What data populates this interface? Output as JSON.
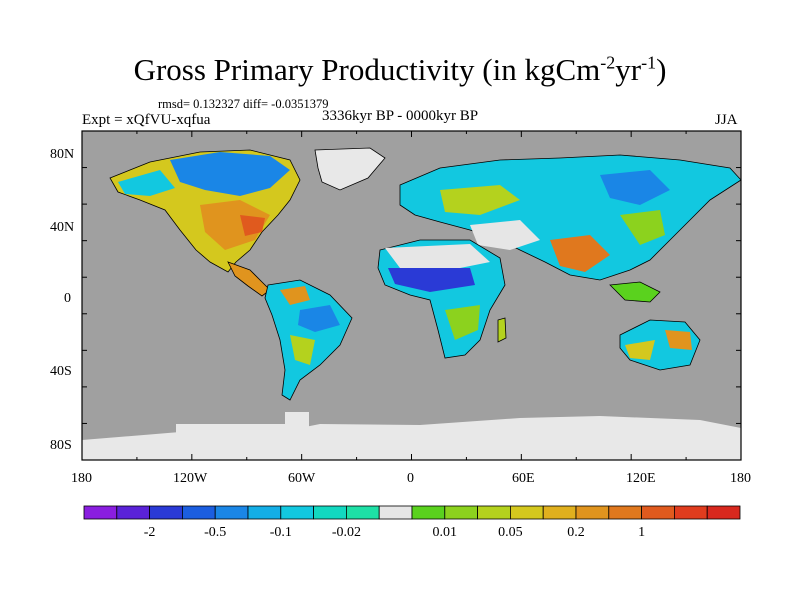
{
  "title": {
    "main": "Gross Primary Productivity (in kgCm",
    "sup1": "-2",
    "mid": "yr",
    "sup2": "-1",
    "end": ")"
  },
  "stats_line": "rmsd= 0.132327 diff= -0.0351379",
  "experiment": "Expt = xQfVU-xqfua",
  "period": "3336kyr BP - 0000kyr BP",
  "season": "JJA",
  "map": {
    "lat_labels": [
      "80N",
      "40N",
      "0",
      "40S",
      "80S"
    ],
    "lon_labels": [
      "180",
      "120W",
      "60W",
      "0",
      "60E",
      "120E",
      "180"
    ],
    "ocean_color": "#a0a0a0",
    "ice_color": "#e8e8e8"
  },
  "colorbar": {
    "colors": [
      "#8a1ee0",
      "#5a22d8",
      "#2a3ad6",
      "#1b5ee0",
      "#1a86e6",
      "#13aee6",
      "#12c8e0",
      "#12d8c0",
      "#1ee0a6",
      "#e6e6e6",
      "#5ad21e",
      "#8cd21e",
      "#b4d21e",
      "#d4c81e",
      "#e0b01e",
      "#e0941e",
      "#e0781e",
      "#e05a1e",
      "#e03c1e",
      "#d8281e"
    ],
    "labels": [
      "-2",
      "-0.5",
      "-0.1",
      "-0.02",
      "0.01",
      "0.05",
      "0.2",
      "1"
    ]
  }
}
